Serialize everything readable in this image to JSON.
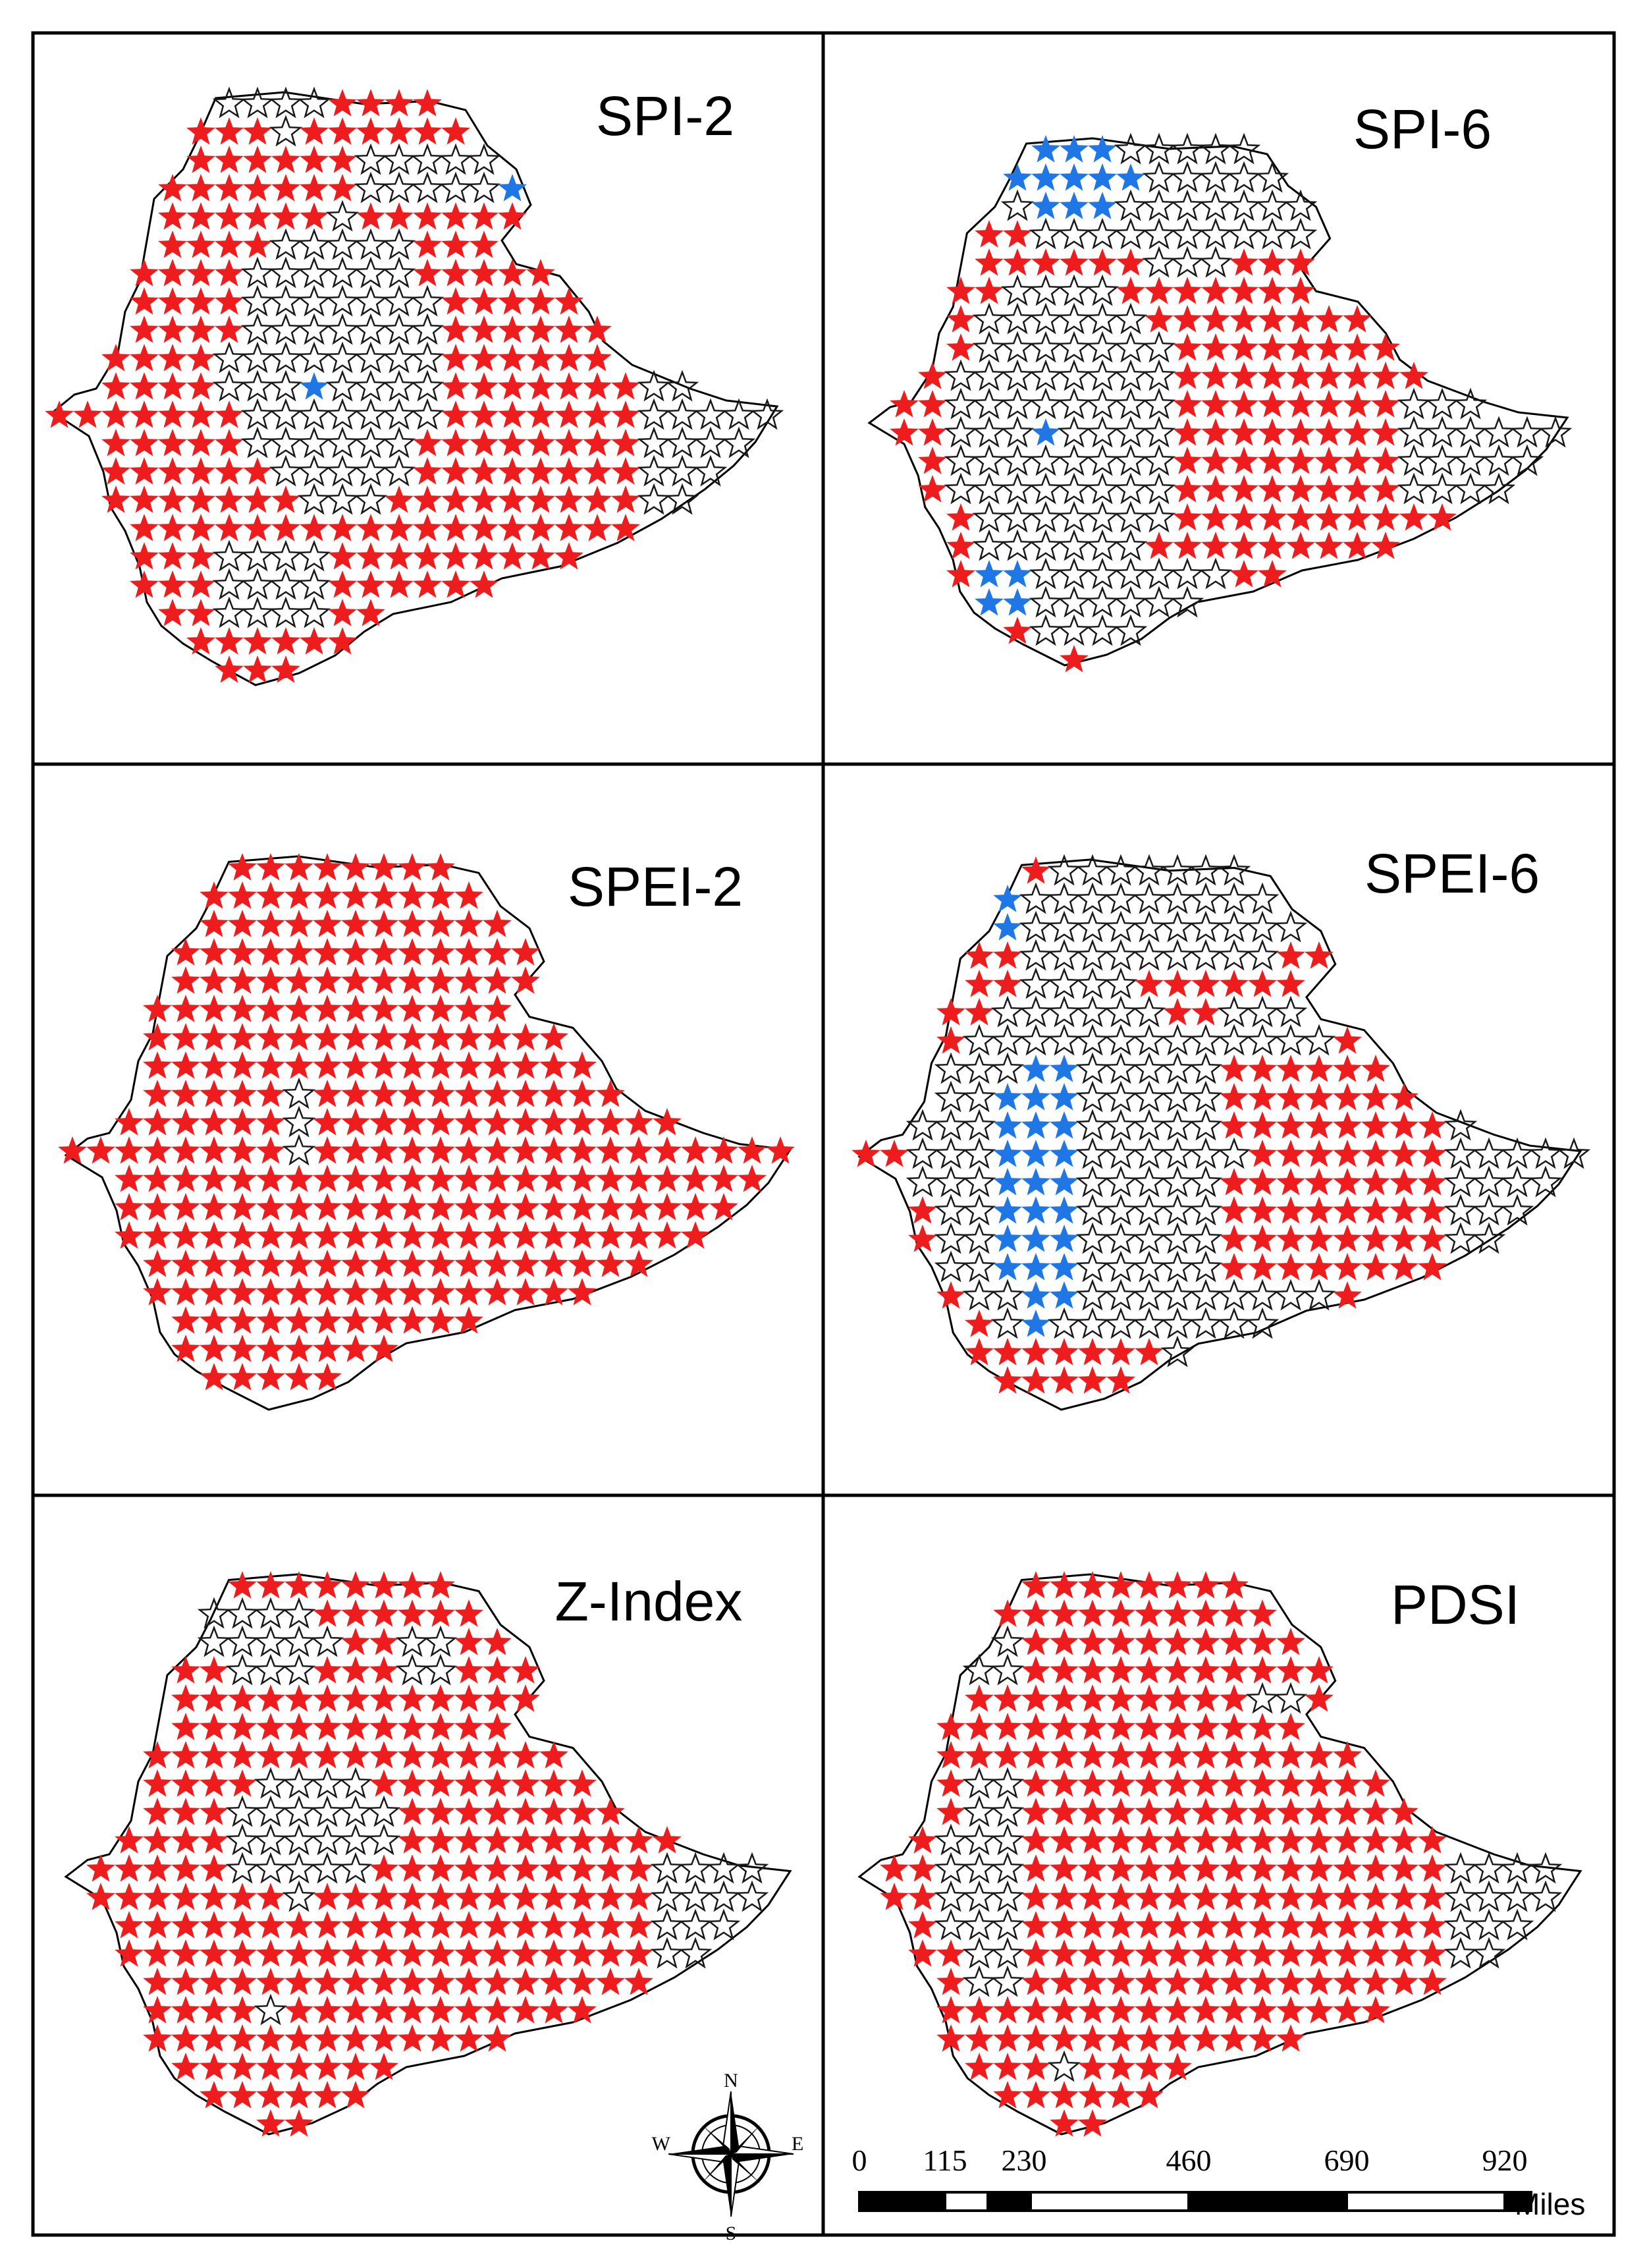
{
  "colors": {
    "red_star": "#ee1c1c",
    "blue_star": "#1f77e6",
    "outline_star": "#1a1a1a",
    "country_outline": "#000000",
    "frame": "#000000"
  },
  "panels": [
    {
      "id": "spi-2",
      "title": "SPI-2"
    },
    {
      "id": "spi-6",
      "title": "SPI-6"
    },
    {
      "id": "spei-2",
      "title": "SPEI-2"
    },
    {
      "id": "spei-6",
      "title": "SPEI-6"
    },
    {
      "id": "z-index",
      "title": "Z-Index"
    },
    {
      "id": "pdsi",
      "title": "PDSI"
    }
  ],
  "compass": {
    "north": "N",
    "south": "S",
    "east": "E",
    "west": "W"
  },
  "scale_bar": {
    "labels": [
      "0",
      "115",
      "230",
      "460",
      "690",
      "920"
    ],
    "unit": "Miles"
  },
  "legend_icons": {
    "red": "red-star-icon",
    "blue": "blue-star-icon",
    "outline": "outline-star-icon"
  }
}
